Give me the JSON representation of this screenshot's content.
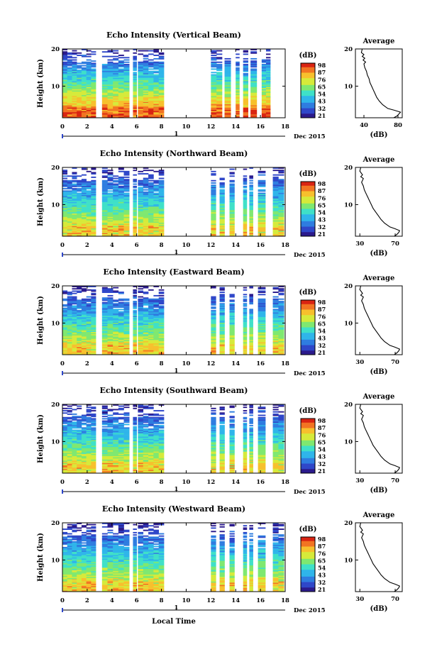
{
  "chart_data": [
    {
      "type": "heatmap",
      "title": "Echo Intensity (Vertical Beam)",
      "ylabel": "Height (km)",
      "x_ticks": [
        "0",
        "2",
        "4",
        "6",
        "8",
        "10",
        "12",
        "14",
        "16",
        "18"
      ],
      "y_ticks": [
        "20",
        "10"
      ],
      "xlim": [
        0,
        18
      ],
      "ylim": [
        1.5,
        20
      ],
      "date_marker": "1",
      "date_label": "Dec 2015",
      "data_segments_hours": [
        [
          0,
          2.7
        ],
        [
          3.2,
          5.4
        ],
        [
          5.7,
          6.0
        ],
        [
          6.1,
          8.2
        ],
        [
          12.0,
          12.9
        ],
        [
          13.1,
          13.6
        ],
        [
          14.0,
          14.3
        ],
        [
          14.6,
          15.0
        ],
        [
          15.2,
          15.7
        ],
        [
          16.1,
          16.8
        ]
      ],
      "colorbar": {
        "label": "(dB)",
        "ticks": [
          "98",
          "87",
          "76",
          "65",
          "54",
          "43",
          "32",
          "21"
        ],
        "range": [
          21,
          98
        ]
      },
      "average_profile": {
        "title": "Average",
        "xlabel": "(dB)",
        "x_ticks": [
          "40",
          "80"
        ],
        "y_ticks": [
          "20",
          "10"
        ],
        "xlim": [
          30,
          85
        ],
        "ylim": [
          1.5,
          20
        ],
        "points": [
          [
            38,
            20
          ],
          [
            37,
            19
          ],
          [
            40,
            18.5
          ],
          [
            38,
            18
          ],
          [
            41,
            17.5
          ],
          [
            39,
            17
          ],
          [
            42,
            16.5
          ],
          [
            40,
            16
          ],
          [
            41,
            15
          ],
          [
            43,
            14
          ],
          [
            44,
            13
          ],
          [
            46,
            12
          ],
          [
            47,
            11
          ],
          [
            49,
            10
          ],
          [
            51,
            9
          ],
          [
            53,
            8
          ],
          [
            55,
            7
          ],
          [
            58,
            6
          ],
          [
            62,
            5
          ],
          [
            68,
            4
          ],
          [
            76,
            3.5
          ],
          [
            83,
            3
          ],
          [
            81,
            2.5
          ],
          [
            79,
            2
          ],
          [
            75,
            1.5
          ]
        ]
      }
    },
    {
      "type": "heatmap",
      "title": "Echo Intensity (Northward Beam)",
      "ylabel": "Height (km)",
      "x_ticks": [
        "0",
        "2",
        "4",
        "6",
        "8",
        "10",
        "12",
        "14",
        "16",
        "18"
      ],
      "y_ticks": [
        "20",
        "10"
      ],
      "xlim": [
        0,
        18
      ],
      "ylim": [
        1.5,
        20
      ],
      "date_marker": "1",
      "date_label": "Dec 2015",
      "data_segments_hours": [
        [
          0,
          2.7
        ],
        [
          3.2,
          5.4
        ],
        [
          5.7,
          6.0
        ],
        [
          6.1,
          8.2
        ],
        [
          12.0,
          12.4
        ],
        [
          12.7,
          13.1
        ],
        [
          13.5,
          13.9
        ],
        [
          14.6,
          14.9
        ],
        [
          15.1,
          15.4
        ],
        [
          15.8,
          16.4
        ],
        [
          17.0,
          17.9
        ]
      ],
      "colorbar": {
        "label": "(dB)",
        "ticks": [
          "98",
          "87",
          "76",
          "65",
          "54",
          "43",
          "32",
          "21"
        ],
        "range": [
          21,
          98
        ]
      },
      "average_profile": {
        "title": "Average",
        "xlabel": "(dB)",
        "x_ticks": [
          "30",
          "70"
        ],
        "y_ticks": [
          "20",
          "10"
        ],
        "xlim": [
          25,
          78
        ],
        "ylim": [
          1.5,
          20
        ],
        "points": [
          [
            31,
            20
          ],
          [
            30,
            19
          ],
          [
            33,
            18
          ],
          [
            31,
            17.5
          ],
          [
            34,
            17
          ],
          [
            32,
            16
          ],
          [
            34,
            15
          ],
          [
            35,
            14
          ],
          [
            37,
            13
          ],
          [
            39,
            12
          ],
          [
            41,
            11
          ],
          [
            43,
            10
          ],
          [
            45,
            9
          ],
          [
            48,
            8
          ],
          [
            51,
            7
          ],
          [
            54,
            6
          ],
          [
            58,
            5
          ],
          [
            64,
            4
          ],
          [
            70,
            3.5
          ],
          [
            75,
            3
          ],
          [
            74,
            2.5
          ],
          [
            72,
            2
          ],
          [
            69,
            1.5
          ]
        ]
      }
    },
    {
      "type": "heatmap",
      "title": "Echo Intensity (Eastward Beam)",
      "ylabel": "Height (km)",
      "x_ticks": [
        "0",
        "2",
        "4",
        "6",
        "8",
        "10",
        "12",
        "14",
        "16",
        "18"
      ],
      "y_ticks": [
        "20",
        "10"
      ],
      "xlim": [
        0,
        18
      ],
      "ylim": [
        1.5,
        20
      ],
      "date_marker": "1",
      "date_label": "Dec 2015",
      "data_segments_hours": [
        [
          0,
          2.7
        ],
        [
          3.2,
          5.4
        ],
        [
          5.7,
          6.0
        ],
        [
          6.1,
          8.2
        ],
        [
          12.0,
          12.4
        ],
        [
          12.7,
          13.1
        ],
        [
          13.5,
          13.9
        ],
        [
          14.6,
          14.9
        ],
        [
          15.1,
          15.4
        ],
        [
          15.8,
          16.4
        ],
        [
          17.0,
          17.9
        ]
      ],
      "colorbar": {
        "label": "(dB)",
        "ticks": [
          "98",
          "87",
          "76",
          "65",
          "54",
          "43",
          "32",
          "21"
        ],
        "range": [
          21,
          98
        ]
      },
      "average_profile": {
        "title": "Average",
        "xlabel": "(dB)",
        "x_ticks": [
          "30",
          "70"
        ],
        "y_ticks": [
          "20",
          "10"
        ],
        "xlim": [
          25,
          78
        ],
        "ylim": [
          1.5,
          20
        ],
        "points": [
          [
            31,
            20
          ],
          [
            30,
            19
          ],
          [
            33,
            18
          ],
          [
            31,
            17.5
          ],
          [
            34,
            17
          ],
          [
            32,
            16
          ],
          [
            34,
            15
          ],
          [
            35,
            14
          ],
          [
            37,
            13
          ],
          [
            39,
            12
          ],
          [
            41,
            11
          ],
          [
            43,
            10
          ],
          [
            45,
            9
          ],
          [
            48,
            8
          ],
          [
            51,
            7
          ],
          [
            54,
            6
          ],
          [
            58,
            5
          ],
          [
            64,
            4
          ],
          [
            70,
            3.5
          ],
          [
            75,
            3
          ],
          [
            74,
            2.5
          ],
          [
            72,
            2
          ],
          [
            69,
            1.5
          ]
        ]
      }
    },
    {
      "type": "heatmap",
      "title": "Echo Intensity (Southward Beam)",
      "ylabel": "Height (km)",
      "x_ticks": [
        "0",
        "2",
        "4",
        "6",
        "8",
        "10",
        "12",
        "14",
        "16",
        "18"
      ],
      "y_ticks": [
        "20",
        "10"
      ],
      "xlim": [
        0,
        18
      ],
      "ylim": [
        1.5,
        20
      ],
      "date_marker": "1",
      "date_label": "Dec 2015",
      "data_segments_hours": [
        [
          0,
          2.7
        ],
        [
          3.2,
          5.4
        ],
        [
          5.7,
          6.0
        ],
        [
          6.1,
          8.2
        ],
        [
          12.0,
          12.4
        ],
        [
          12.7,
          13.1
        ],
        [
          13.5,
          13.9
        ],
        [
          14.6,
          14.9
        ],
        [
          15.1,
          15.4
        ],
        [
          15.8,
          16.4
        ],
        [
          17.0,
          17.9
        ]
      ],
      "colorbar": {
        "label": "(dB)",
        "ticks": [
          "98",
          "87",
          "76",
          "65",
          "54",
          "43",
          "32",
          "21"
        ],
        "range": [
          21,
          98
        ]
      },
      "average_profile": {
        "title": "Average",
        "xlabel": "(dB)",
        "x_ticks": [
          "30",
          "70"
        ],
        "y_ticks": [
          "20",
          "10"
        ],
        "xlim": [
          25,
          78
        ],
        "ylim": [
          1.5,
          20
        ],
        "points": [
          [
            31,
            20
          ],
          [
            30,
            19
          ],
          [
            33,
            18
          ],
          [
            31,
            17.5
          ],
          [
            34,
            17
          ],
          [
            32,
            16
          ],
          [
            34,
            15
          ],
          [
            35,
            14
          ],
          [
            37,
            13
          ],
          [
            39,
            12
          ],
          [
            41,
            11
          ],
          [
            43,
            10
          ],
          [
            45,
            9
          ],
          [
            48,
            8
          ],
          [
            51,
            7
          ],
          [
            54,
            6
          ],
          [
            58,
            5
          ],
          [
            64,
            4
          ],
          [
            70,
            3.5
          ],
          [
            75,
            3
          ],
          [
            74,
            2.5
          ],
          [
            72,
            2
          ],
          [
            69,
            1.5
          ]
        ]
      }
    },
    {
      "type": "heatmap",
      "title": "Echo Intensity (Westward Beam)",
      "ylabel": "Height (km)",
      "x_ticks": [
        "0",
        "2",
        "4",
        "6",
        "8",
        "10",
        "12",
        "14",
        "16",
        "18"
      ],
      "y_ticks": [
        "20",
        "10"
      ],
      "xlim": [
        0,
        18
      ],
      "ylim": [
        1.5,
        20
      ],
      "date_marker": "1",
      "date_label": "Dec 2015",
      "data_segments_hours": [
        [
          0,
          2.7
        ],
        [
          3.2,
          5.4
        ],
        [
          5.7,
          6.0
        ],
        [
          6.1,
          8.2
        ],
        [
          12.0,
          12.4
        ],
        [
          12.7,
          13.1
        ],
        [
          13.5,
          13.9
        ],
        [
          14.6,
          14.9
        ],
        [
          15.1,
          15.4
        ],
        [
          15.8,
          16.4
        ],
        [
          17.0,
          17.9
        ]
      ],
      "colorbar": {
        "label": "(dB)",
        "ticks": [
          "98",
          "87",
          "76",
          "65",
          "54",
          "43",
          "32",
          "21"
        ],
        "range": [
          21,
          98
        ]
      },
      "average_profile": {
        "title": "Average",
        "xlabel": "(dB)",
        "x_ticks": [
          "30",
          "70"
        ],
        "y_ticks": [
          "20",
          "10"
        ],
        "xlim": [
          25,
          78
        ],
        "ylim": [
          1.5,
          20
        ],
        "points": [
          [
            31,
            20
          ],
          [
            30,
            19
          ],
          [
            33,
            18
          ],
          [
            31,
            17.5
          ],
          [
            34,
            17
          ],
          [
            32,
            16
          ],
          [
            34,
            15
          ],
          [
            35,
            14
          ],
          [
            37,
            13
          ],
          [
            39,
            12
          ],
          [
            41,
            11
          ],
          [
            43,
            10
          ],
          [
            45,
            9
          ],
          [
            48,
            8
          ],
          [
            51,
            7
          ],
          [
            54,
            6
          ],
          [
            58,
            5
          ],
          [
            64,
            4
          ],
          [
            70,
            3.5
          ],
          [
            75,
            3
          ],
          [
            74,
            2.5
          ],
          [
            72,
            2
          ],
          [
            69,
            1.5
          ]
        ]
      }
    }
  ],
  "shared_xlabel": "Local Time",
  "colors": {
    "colormap": [
      "#2b1a8c",
      "#2f47c9",
      "#2f7de0",
      "#2fb5ea",
      "#3fe0c8",
      "#7fe870",
      "#d6ea3a",
      "#f7c02d",
      "#f27422",
      "#d92412"
    ]
  }
}
